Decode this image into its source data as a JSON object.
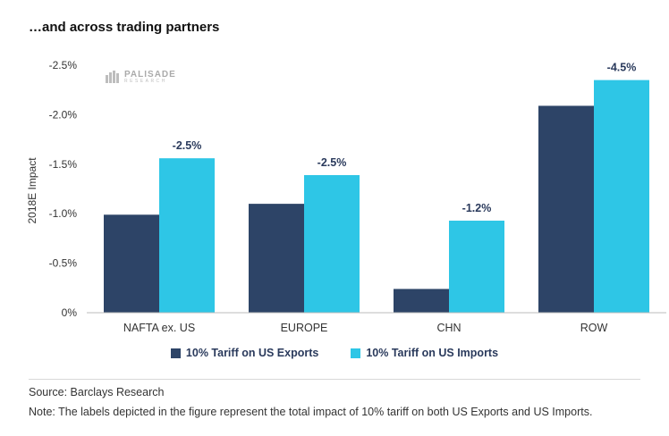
{
  "title": "…and across trading partners",
  "logo": {
    "name": "PALISADE",
    "sub": "RESEARCH"
  },
  "legend": {
    "exports_label": "10% Tariff on US Exports",
    "imports_label": "10% Tariff on US Imports"
  },
  "footer": {
    "source": "Source: Barclays Research",
    "note": "Note: The labels depicted in the figure represent the total impact of 10% tariff on both US Exports and US Imports."
  },
  "colors": {
    "exports": "#2d4467",
    "imports": "#2ec6e6",
    "label": "#2a3a5c",
    "axis": "#444444"
  },
  "chart_data": {
    "type": "bar",
    "title": "…and across trading partners",
    "xlabel": "",
    "ylabel": "2018E  Impact",
    "categories": [
      "NAFTA ex. US",
      "EUROPE",
      "CHN",
      "ROW"
    ],
    "series": [
      {
        "name": "10% Tariff on US Exports",
        "values": [
          -0.99,
          -1.1,
          -0.24,
          -2.09
        ]
      },
      {
        "name": "10% Tariff on US Imports",
        "values": [
          -1.56,
          -1.39,
          -0.93,
          -2.35
        ]
      }
    ],
    "totals": [
      "-2.5%",
      "-2.5%",
      "-1.2%",
      "-4.5%"
    ],
    "yticks": [
      0,
      -0.5,
      -1.0,
      -1.5,
      -2.0,
      -2.5
    ],
    "ytick_labels": [
      "0%",
      "-0.5%",
      "-1.0%",
      "-1.5%",
      "-2.0%",
      "-2.5%"
    ],
    "ylim": [
      0,
      -2.5
    ],
    "grid": false,
    "legend": "bottom-center"
  }
}
